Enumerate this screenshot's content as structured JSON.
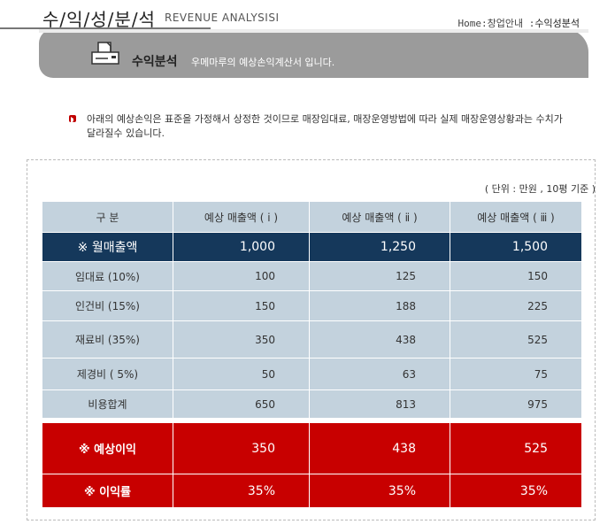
{
  "header": {
    "title": "수/익/성/분/석",
    "subtitle": "REVENUE ANALYSISI",
    "breadcrumb_home": "Home:창업안내 :",
    "breadcrumb_current": "수익성분석"
  },
  "banner": {
    "title": "수익분석",
    "description": "우메마루의  예상손익계산서 입니다."
  },
  "note": {
    "text": "아래의  예상손익은 표준을 가정해서 상정한 것이므로 매장임대료, 매장운영방법에 따라 실제 매장운영상황과는 수치가 달라질수 있습니다."
  },
  "unit_label": "( 단위 : 만원 ,  10평 기준 )",
  "table": {
    "headers": [
      "구  분",
      "예상 매출액 ( ⅰ )",
      "예상 매출액 ( ⅱ )",
      "예상 매출액 ( ⅲ )"
    ],
    "rows": [
      {
        "label": "※ 월매출액",
        "values": [
          "1,000",
          "1,250",
          "1,500"
        ]
      },
      {
        "label": "임대료 (10%)",
        "values": [
          "100",
          "125",
          "150"
        ]
      },
      {
        "label": "인건비 (15%)",
        "values": [
          "150",
          "188",
          "225"
        ]
      },
      {
        "label": "재료비 (35%)",
        "values": [
          "350",
          "438",
          "525"
        ]
      },
      {
        "label": "제경비 ( 5%)",
        "values": [
          "50",
          "63",
          "75"
        ]
      },
      {
        "label": "비용합계",
        "values": [
          "650",
          "813",
          "975"
        ]
      },
      {
        "label": "※ 예상이익",
        "values": [
          "350",
          "438",
          "525"
        ]
      },
      {
        "label": "※ 이익률",
        "values": [
          "35%",
          "35%",
          "35%"
        ]
      }
    ]
  },
  "colors": {
    "header_cell": "#c3d2dd",
    "highlight_row": "#15385b",
    "profit_rows": "#c80000",
    "banner_gray": "#9b9b9b"
  },
  "icons": {
    "banner_icon": "printer-icon",
    "note_icon": "red-square-bullet-icon"
  }
}
